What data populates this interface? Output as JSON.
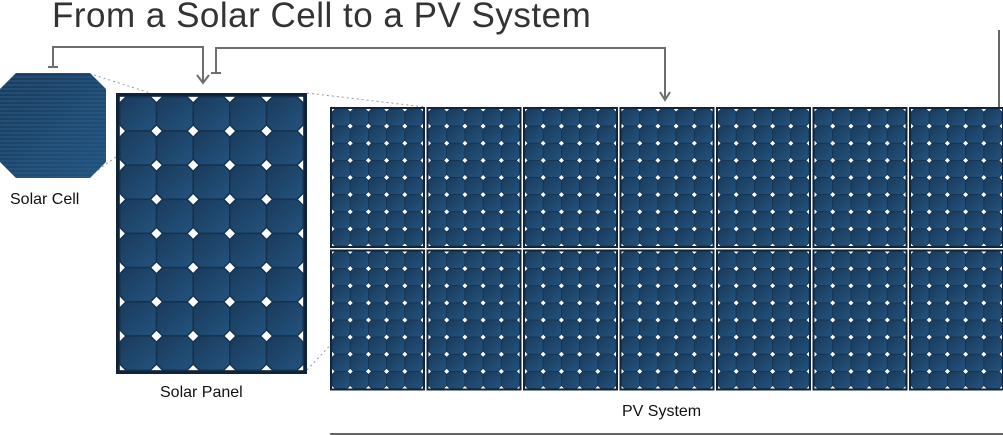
{
  "title": "From a Solar Cell to a PV System",
  "labels": {
    "cell": "Solar Cell",
    "panel": "Solar Panel",
    "system": "PV System"
  },
  "structure": {
    "panel_cells": {
      "columns": 5,
      "rows": 8
    },
    "system_panels": {
      "columns": 7,
      "rows": 2
    }
  },
  "colors": {
    "cell": "#1f4b73",
    "cell_dark": "#15324f",
    "frame": "#0f2438",
    "connector": "#6e6e6e"
  }
}
